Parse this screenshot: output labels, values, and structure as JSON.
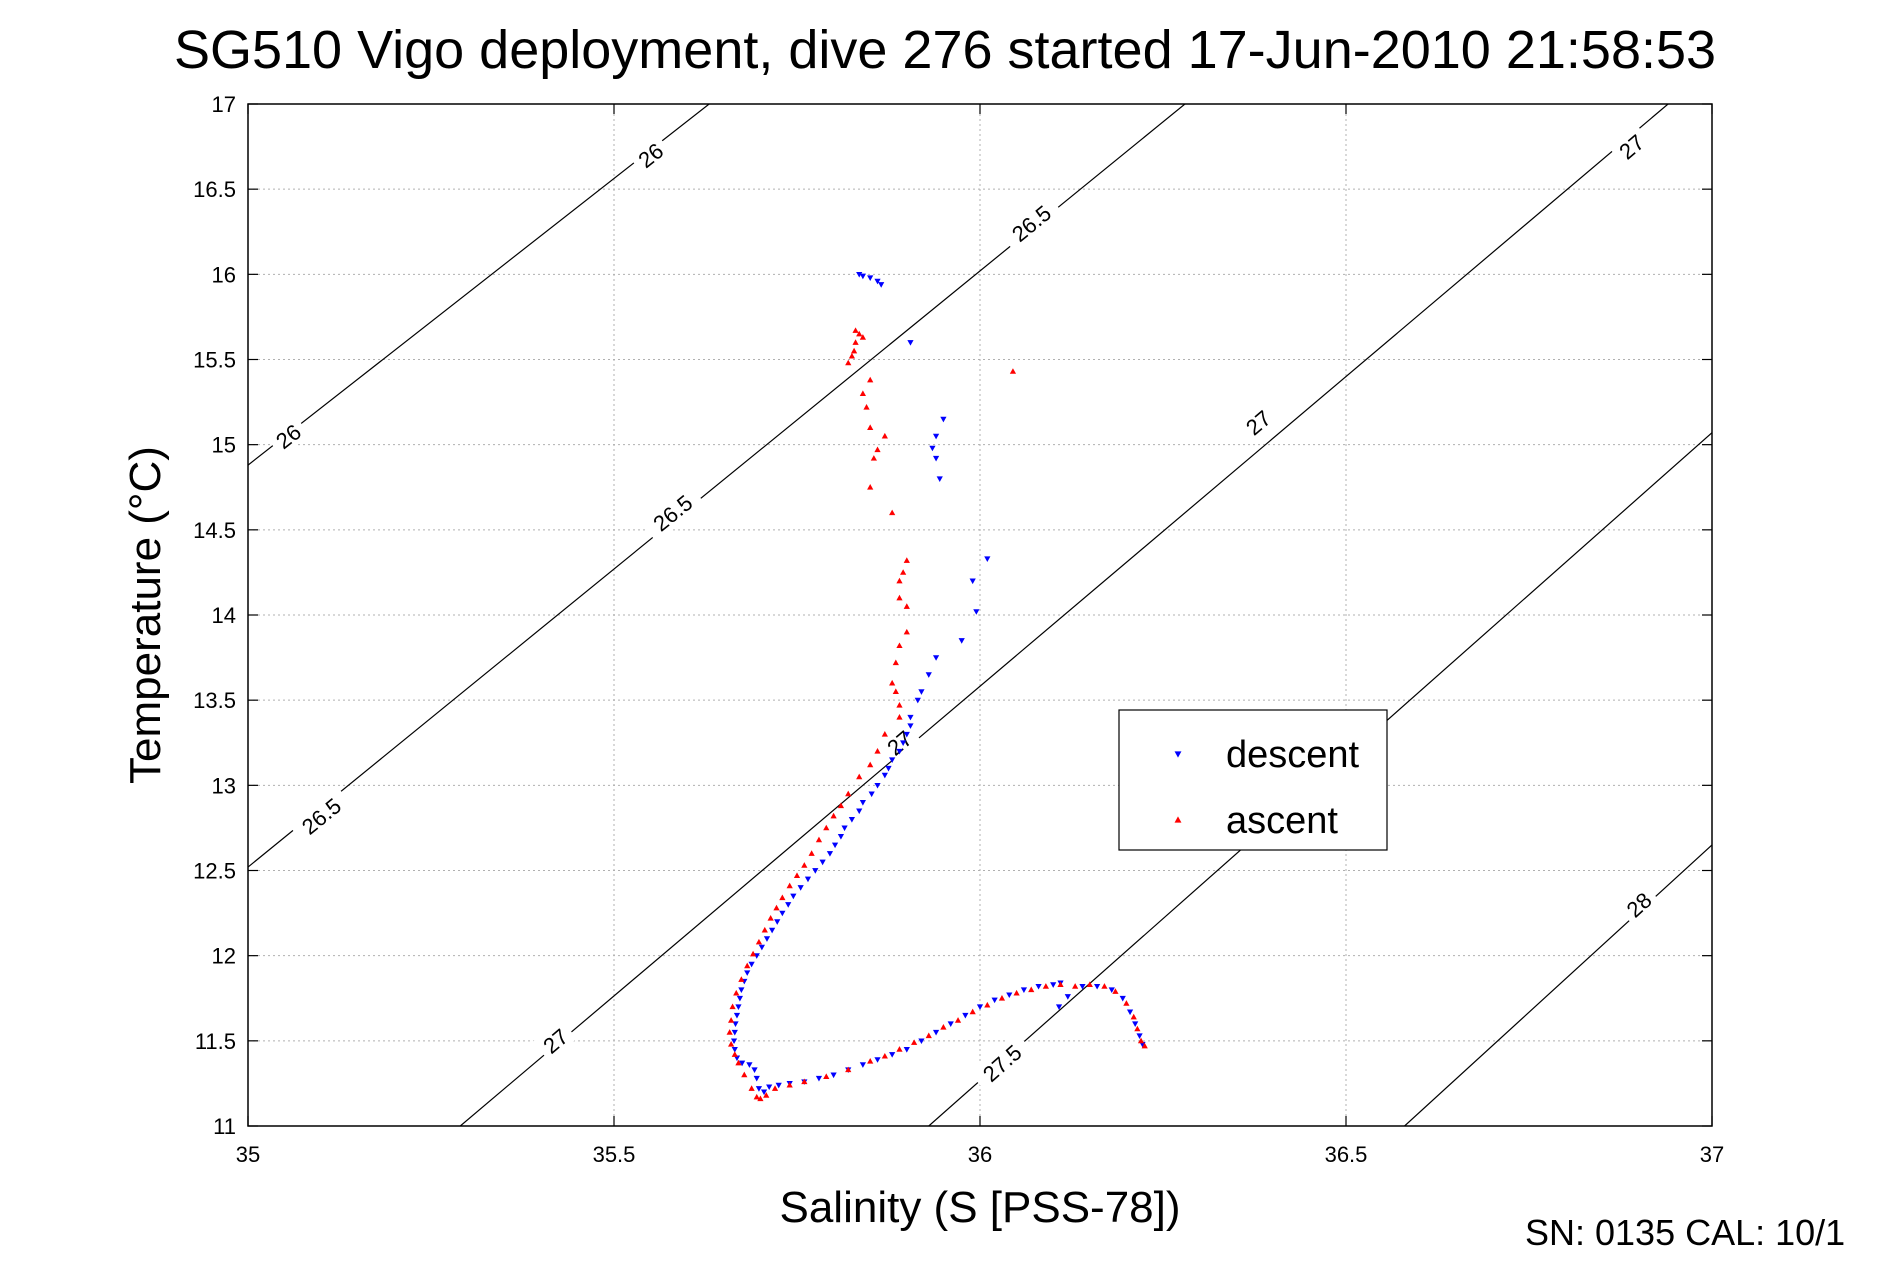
{
  "chart_data": {
    "type": "scatter",
    "title": "SG510 Vigo deployment, dive 276 started 17-Jun-2010 21:58:53",
    "xlabel": "Salinity (S [PSS-78])",
    "ylabel": "Temperature (°C)",
    "xlim": [
      35,
      37
    ],
    "ylim": [
      11,
      17
    ],
    "xticks": [
      35,
      35.5,
      36,
      36.5,
      37
    ],
    "xtick_labels": [
      "35",
      "35.5",
      "36",
      "36.5",
      "37"
    ],
    "yticks": [
      11,
      11.5,
      12,
      12.5,
      13,
      13.5,
      14,
      14.5,
      15,
      15.5,
      16,
      16.5,
      17
    ],
    "ytick_labels": [
      "11",
      "11.5",
      "12",
      "12.5",
      "13",
      "13.5",
      "14",
      "14.5",
      "15",
      "15.5",
      "16",
      "16.5",
      "17"
    ],
    "grid": true,
    "legend_position": "center-right",
    "footer": "SN: 0135  CAL: 10/1",
    "contours": [
      {
        "label": "26",
        "points": [
          [
            35.0,
            14.88
          ],
          [
            35.63,
            17.0
          ]
        ],
        "labels_at": [
          [
            35.055,
            15.05
          ],
          [
            35.55,
            16.7
          ]
        ]
      },
      {
        "label": "26.5",
        "points": [
          [
            35.0,
            12.52
          ],
          [
            36.28,
            17.0
          ]
        ],
        "labels_at": [
          [
            35.1,
            12.82
          ],
          [
            35.58,
            14.6
          ],
          [
            36.07,
            16.3
          ]
        ]
      },
      {
        "label": "27",
        "points": [
          [
            35.29,
            11.0
          ],
          [
            36.94,
            17.0
          ]
        ],
        "labels_at": [
          [
            35.42,
            11.5
          ],
          [
            35.89,
            13.25
          ],
          [
            36.38,
            15.13
          ],
          [
            36.89,
            16.75
          ]
        ]
      },
      {
        "label": "27.5",
        "points": [
          [
            35.93,
            11.0
          ],
          [
            37.0,
            15.07
          ]
        ],
        "labels_at": [
          [
            36.03,
            11.37
          ]
        ]
      },
      {
        "label": "28",
        "points": [
          [
            36.58,
            11.0
          ],
          [
            37.0,
            12.65
          ]
        ],
        "labels_at": [
          [
            36.9,
            12.3
          ]
        ]
      }
    ],
    "series": [
      {
        "name": "descent",
        "color": "#0000ff",
        "marker": "triangle-down",
        "points": [
          [
            35.835,
            16.0
          ],
          [
            35.84,
            15.99
          ],
          [
            35.85,
            15.98
          ],
          [
            35.86,
            15.96
          ],
          [
            35.865,
            15.94
          ],
          [
            35.905,
            15.6
          ],
          [
            35.95,
            15.15
          ],
          [
            35.94,
            15.05
          ],
          [
            35.935,
            14.98
          ],
          [
            35.94,
            14.92
          ],
          [
            35.945,
            14.8
          ],
          [
            36.01,
            14.33
          ],
          [
            35.99,
            14.2
          ],
          [
            35.995,
            14.02
          ],
          [
            35.975,
            13.85
          ],
          [
            35.94,
            13.75
          ],
          [
            35.93,
            13.65
          ],
          [
            35.92,
            13.55
          ],
          [
            35.915,
            13.5
          ],
          [
            35.905,
            13.4
          ],
          [
            35.905,
            13.35
          ],
          [
            35.9,
            13.3
          ],
          [
            35.895,
            13.25
          ],
          [
            35.89,
            13.2
          ],
          [
            35.88,
            13.15
          ],
          [
            35.875,
            13.1
          ],
          [
            35.87,
            13.06
          ],
          [
            35.86,
            13.0
          ],
          [
            35.852,
            12.95
          ],
          [
            35.84,
            12.9
          ],
          [
            35.835,
            12.85
          ],
          [
            35.825,
            12.8
          ],
          [
            35.815,
            12.75
          ],
          [
            35.81,
            12.7
          ],
          [
            35.802,
            12.65
          ],
          [
            35.795,
            12.6
          ],
          [
            35.785,
            12.55
          ],
          [
            35.775,
            12.5
          ],
          [
            35.765,
            12.45
          ],
          [
            35.755,
            12.4
          ],
          [
            35.745,
            12.35
          ],
          [
            35.738,
            12.3
          ],
          [
            35.73,
            12.25
          ],
          [
            35.723,
            12.2
          ],
          [
            35.716,
            12.15
          ],
          [
            35.709,
            12.1
          ],
          [
            35.702,
            12.05
          ],
          [
            35.695,
            12.0
          ],
          [
            35.688,
            11.95
          ],
          [
            35.682,
            11.9
          ],
          [
            35.678,
            11.85
          ],
          [
            35.674,
            11.8
          ],
          [
            35.672,
            11.75
          ],
          [
            35.67,
            11.7
          ],
          [
            35.668,
            11.65
          ],
          [
            35.666,
            11.6
          ],
          [
            35.665,
            11.55
          ],
          [
            35.664,
            11.5
          ],
          [
            35.665,
            11.45
          ],
          [
            35.668,
            11.4
          ],
          [
            35.675,
            11.37
          ],
          [
            35.685,
            11.36
          ],
          [
            35.692,
            11.33
          ],
          [
            35.695,
            11.28
          ],
          [
            35.698,
            11.22
          ],
          [
            35.705,
            11.2
          ],
          [
            35.712,
            11.23
          ],
          [
            35.725,
            11.24
          ],
          [
            35.74,
            11.25
          ],
          [
            35.76,
            11.26
          ],
          [
            35.78,
            11.28
          ],
          [
            35.8,
            11.3
          ],
          [
            35.82,
            11.33
          ],
          [
            35.84,
            11.36
          ],
          [
            35.86,
            11.39
          ],
          [
            35.88,
            11.42
          ],
          [
            35.9,
            11.45
          ],
          [
            35.92,
            11.5
          ],
          [
            35.94,
            11.55
          ],
          [
            35.96,
            11.6
          ],
          [
            35.98,
            11.65
          ],
          [
            36.0,
            11.7
          ],
          [
            36.02,
            11.74
          ],
          [
            36.04,
            11.77
          ],
          [
            36.06,
            11.8
          ],
          [
            36.08,
            11.82
          ],
          [
            36.1,
            11.83
          ],
          [
            36.11,
            11.84
          ],
          [
            36.12,
            11.76
          ],
          [
            36.108,
            11.7
          ],
          [
            36.14,
            11.82
          ],
          [
            36.16,
            11.82
          ],
          [
            36.18,
            11.8
          ],
          [
            36.195,
            11.75
          ],
          [
            36.205,
            11.67
          ],
          [
            36.212,
            11.6
          ],
          [
            36.218,
            11.53
          ],
          [
            36.222,
            11.48
          ]
        ]
      },
      {
        "name": "ascent",
        "color": "#ff0000",
        "marker": "triangle-up",
        "points": [
          [
            35.83,
            15.67
          ],
          [
            35.835,
            15.65
          ],
          [
            35.84,
            15.63
          ],
          [
            35.83,
            15.6
          ],
          [
            35.828,
            15.55
          ],
          [
            35.825,
            15.52
          ],
          [
            35.82,
            15.48
          ],
          [
            36.045,
            15.43
          ],
          [
            35.85,
            15.38
          ],
          [
            35.84,
            15.3
          ],
          [
            35.845,
            15.22
          ],
          [
            35.85,
            15.1
          ],
          [
            35.87,
            15.05
          ],
          [
            35.86,
            14.97
          ],
          [
            35.855,
            14.92
          ],
          [
            35.85,
            14.75
          ],
          [
            35.88,
            14.6
          ],
          [
            35.9,
            14.32
          ],
          [
            35.895,
            14.25
          ],
          [
            35.89,
            14.2
          ],
          [
            35.89,
            14.1
          ],
          [
            35.9,
            14.05
          ],
          [
            35.9,
            13.9
          ],
          [
            35.89,
            13.82
          ],
          [
            35.885,
            13.72
          ],
          [
            35.88,
            13.6
          ],
          [
            35.885,
            13.55
          ],
          [
            35.89,
            13.47
          ],
          [
            35.89,
            13.4
          ],
          [
            35.87,
            13.3
          ],
          [
            35.86,
            13.2
          ],
          [
            35.85,
            13.12
          ],
          [
            35.835,
            13.05
          ],
          [
            35.82,
            12.95
          ],
          [
            35.81,
            12.88
          ],
          [
            35.8,
            12.82
          ],
          [
            35.79,
            12.75
          ],
          [
            35.78,
            12.68
          ],
          [
            35.77,
            12.6
          ],
          [
            35.76,
            12.53
          ],
          [
            35.75,
            12.47
          ],
          [
            35.74,
            12.41
          ],
          [
            35.73,
            12.34
          ],
          [
            35.722,
            12.28
          ],
          [
            35.714,
            12.22
          ],
          [
            35.706,
            12.15
          ],
          [
            35.698,
            12.08
          ],
          [
            35.69,
            12.01
          ],
          [
            35.682,
            11.94
          ],
          [
            35.674,
            11.86
          ],
          [
            35.667,
            11.78
          ],
          [
            35.662,
            11.7
          ],
          [
            35.66,
            11.62
          ],
          [
            35.658,
            11.55
          ],
          [
            35.66,
            11.48
          ],
          [
            35.665,
            11.42
          ],
          [
            35.67,
            11.37
          ],
          [
            35.678,
            11.3
          ],
          [
            35.688,
            11.22
          ],
          [
            35.695,
            11.17
          ],
          [
            35.7,
            11.16
          ],
          [
            35.708,
            11.18
          ],
          [
            35.72,
            11.22
          ],
          [
            35.74,
            11.24
          ],
          [
            35.76,
            11.26
          ],
          [
            35.79,
            11.29
          ],
          [
            35.82,
            11.33
          ],
          [
            35.85,
            11.38
          ],
          [
            35.87,
            11.41
          ],
          [
            35.89,
            11.45
          ],
          [
            35.91,
            11.49
          ],
          [
            35.93,
            11.53
          ],
          [
            35.95,
            11.58
          ],
          [
            35.97,
            11.62
          ],
          [
            35.99,
            11.67
          ],
          [
            36.01,
            11.71
          ],
          [
            36.03,
            11.75
          ],
          [
            36.05,
            11.78
          ],
          [
            36.07,
            11.8
          ],
          [
            36.09,
            11.82
          ],
          [
            36.11,
            11.83
          ],
          [
            36.13,
            11.82
          ],
          [
            36.15,
            11.83
          ],
          [
            36.17,
            11.82
          ],
          [
            36.185,
            11.79
          ],
          [
            36.2,
            11.72
          ],
          [
            36.21,
            11.64
          ],
          [
            36.215,
            11.57
          ],
          [
            36.22,
            11.5
          ],
          [
            36.225,
            11.47
          ]
        ]
      }
    ]
  }
}
